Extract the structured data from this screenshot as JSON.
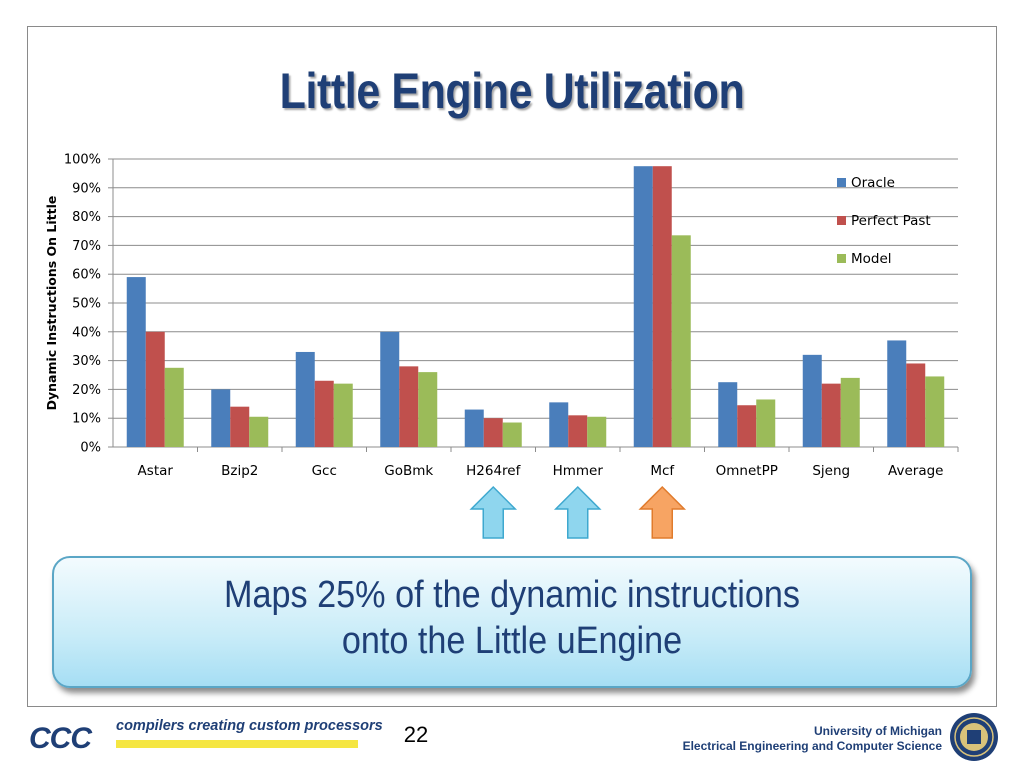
{
  "slide": {
    "title": "Little Engine Utilization",
    "callout": {
      "line1": "Maps 25% of the dynamic instructions",
      "line2": "onto the  Little uEngine"
    },
    "footer": {
      "logo_text": "CCC",
      "tagline": "compilers creating custom processors",
      "page_number": "22",
      "university": "University of Michigan",
      "department": "Electrical Engineering and Computer Science"
    },
    "arrows": [
      {
        "category": "H264ref",
        "color": "#8fd6ee"
      },
      {
        "category": "Hmmer",
        "color": "#8fd6ee"
      },
      {
        "category": "Mcf",
        "color": "#f7a463"
      }
    ]
  },
  "chart_data": {
    "type": "bar",
    "title": "",
    "xlabel": "",
    "ylabel": "Dynamic Instructions On Little",
    "ylim": [
      0,
      100
    ],
    "yticks": [
      "0%",
      "10%",
      "20%",
      "30%",
      "40%",
      "50%",
      "60%",
      "70%",
      "80%",
      "90%",
      "100%"
    ],
    "grid": true,
    "legend_position": "top-right",
    "categories": [
      "Astar",
      "Bzip2",
      "Gcc",
      "GoBmk",
      "H264ref",
      "Hmmer",
      "Mcf",
      "OmnetPP",
      "Sjeng",
      "Average"
    ],
    "series": [
      {
        "name": "Oracle",
        "color": "#4a7ebb",
        "values": [
          59,
          20,
          33,
          40,
          13,
          15.5,
          97.5,
          22.5,
          32,
          37
        ]
      },
      {
        "name": "Perfect Past",
        "color": "#c0504d",
        "values": [
          40,
          14,
          23,
          28,
          10,
          11,
          97.5,
          14.5,
          22,
          29
        ]
      },
      {
        "name": "Model",
        "color": "#9bbb59",
        "values": [
          27.5,
          10.5,
          22,
          26,
          8.5,
          10.5,
          73.5,
          16.5,
          24,
          24.5
        ]
      }
    ]
  }
}
